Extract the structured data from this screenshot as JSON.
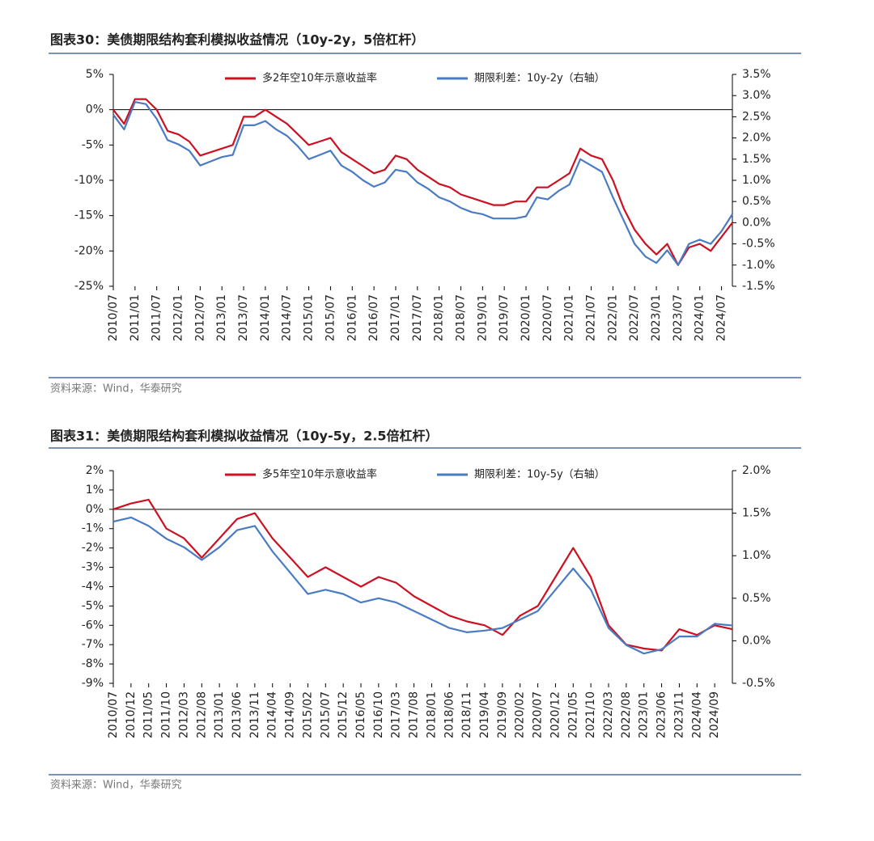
{
  "chart_data": [
    {
      "type": "line",
      "title": "图表30：美债期限结构套利模拟收益情况（10y-2y，5倍杠杆）",
      "source": "资料来源：Wind，华泰研究",
      "categories": [
        "2010/07",
        null,
        "2011/01",
        null,
        "2011/07",
        null,
        "2012/01",
        null,
        "2012/07",
        null,
        "2013/01",
        null,
        "2013/07",
        null,
        "2014/01",
        null,
        "2014/07",
        null,
        "2015/01",
        null,
        "2015/07",
        null,
        "2016/01",
        null,
        "2016/07",
        null,
        "2017/01",
        null,
        "2017/07",
        null,
        "2018/01",
        null,
        "2018/07",
        null,
        "2019/01",
        null,
        "2019/07",
        null,
        "2020/01",
        null,
        "2020/07",
        null,
        "2021/01",
        null,
        "2021/07",
        null,
        "2022/01",
        null,
        "2022/07",
        null,
        "2023/01",
        null,
        "2023/07",
        null,
        "2024/01",
        null,
        "2024/07",
        null
      ],
      "series": [
        {
          "name": "多2年空10年示意收益率",
          "color": "#cc1122",
          "values": [
            0,
            -2,
            1.5,
            1.5,
            0,
            -3,
            -3.5,
            -4.5,
            -6.5,
            -6,
            -5.5,
            -5,
            -1,
            -1,
            0,
            -1,
            -2,
            -3.5,
            -5,
            -4.5,
            -4,
            -6,
            -7,
            -8,
            -9,
            -8.5,
            -6.5,
            -7,
            -8.5,
            -9.5,
            -10.5,
            -11,
            -12,
            -12.5,
            -13,
            -13.5,
            -13.5,
            -13,
            -13,
            -11,
            -11,
            -10,
            -9,
            -5.5,
            -6.5,
            -7,
            -10,
            -14,
            -17,
            -19,
            -20.5,
            -19,
            -22,
            -19.5,
            -19,
            -20,
            -18,
            -16
          ]
        },
        {
          "name": "期限利差：10y-2y（右轴）",
          "color": "#4a7cc4",
          "axis": "y2",
          "values": [
            2.55,
            2.2,
            2.85,
            2.8,
            2.45,
            1.95,
            1.85,
            1.7,
            1.35,
            1.45,
            1.55,
            1.6,
            2.3,
            2.3,
            2.4,
            2.2,
            2.05,
            1.8,
            1.5,
            1.6,
            1.7,
            1.35,
            1.2,
            1.0,
            0.85,
            0.95,
            1.25,
            1.2,
            0.95,
            0.8,
            0.6,
            0.5,
            0.35,
            0.25,
            0.2,
            0.1,
            0.1,
            0.1,
            0.15,
            0.6,
            0.55,
            0.75,
            0.9,
            1.5,
            1.35,
            1.2,
            0.6,
            0.05,
            -0.5,
            -0.8,
            -0.95,
            -0.65,
            -1.0,
            -0.5,
            -0.4,
            -0.5,
            -0.2,
            0.2
          ]
        }
      ],
      "ylim": [
        -25,
        5
      ],
      "yticks": [
        {
          "value": -25,
          "label": "-25%"
        },
        {
          "value": -20,
          "label": "-20%"
        },
        {
          "value": -15,
          "label": "-15%"
        },
        {
          "value": -10,
          "label": "-10%"
        },
        {
          "value": -5,
          "label": "-5%"
        },
        {
          "value": 0,
          "label": "0%"
        },
        {
          "value": 5,
          "label": "5%"
        }
      ],
      "y2lim": [
        -1.5,
        3.5
      ],
      "y2ticks": [
        {
          "value": -1.5,
          "label": "-1.5%"
        },
        {
          "value": -1.0,
          "label": "-1.0%"
        },
        {
          "value": -0.5,
          "label": "-0.5%"
        },
        {
          "value": 0,
          "label": "0.0%"
        },
        {
          "value": 0.5,
          "label": "0.5%"
        },
        {
          "value": 1.0,
          "label": "1.0%"
        },
        {
          "value": 1.5,
          "label": "1.5%"
        },
        {
          "value": 2.0,
          "label": "2.0%"
        },
        {
          "value": 2.5,
          "label": "2.5%"
        },
        {
          "value": 3.0,
          "label": "3.0%"
        },
        {
          "value": 3.5,
          "label": "3.5%"
        }
      ]
    },
    {
      "type": "line",
      "title": "图表31：美债期限结构套利模拟收益情况（10y-5y，2.5倍杠杆）",
      "source": "资料来源：Wind，华泰研究",
      "categories": [
        "2010/07",
        "2010/12",
        "2011/05",
        "2011/10",
        "2012/03",
        "2012/08",
        "2013/01",
        "2013/06",
        "2013/11",
        "2014/04",
        "2014/09",
        "2015/02",
        "2015/07",
        "2015/12",
        "2016/05",
        "2016/10",
        "2017/03",
        "2017/08",
        "2018/01",
        "2018/06",
        "2018/11",
        "2019/04",
        "2019/09",
        "2020/02",
        "2020/07",
        "2020/12",
        "2021/05",
        "2021/10",
        "2022/03",
        "2022/08",
        "2023/01",
        "2023/06",
        "2023/11",
        "2024/04",
        "2024/09",
        null
      ],
      "series": [
        {
          "name": "多5年空10年示意收益率",
          "color": "#cc1122",
          "values": [
            0,
            0.3,
            0.5,
            -1,
            -1.5,
            -2.5,
            -1.5,
            -0.5,
            -0.2,
            -1.5,
            -2.5,
            -3.5,
            -3,
            -3.5,
            -4,
            -3.5,
            -3.8,
            -4.5,
            -5,
            -5.5,
            -5.8,
            -6,
            -6.5,
            -5.5,
            -5,
            -3.5,
            -2,
            -3.5,
            -6,
            -7,
            -7.2,
            -7.3,
            -6.2,
            -6.5,
            -6,
            -6.2
          ]
        },
        {
          "name": "期限利差：10y-5y（右轴）",
          "color": "#4a7cc4",
          "axis": "y2",
          "values": [
            1.4,
            1.45,
            1.35,
            1.2,
            1.1,
            0.95,
            1.1,
            1.3,
            1.35,
            1.05,
            0.8,
            0.55,
            0.6,
            0.55,
            0.45,
            0.5,
            0.45,
            0.35,
            0.25,
            0.15,
            0.1,
            0.12,
            0.15,
            0.25,
            0.35,
            0.6,
            0.85,
            0.6,
            0.15,
            -0.05,
            -0.15,
            -0.1,
            0.05,
            0.05,
            0.2,
            0.18
          ]
        }
      ],
      "ylim": [
        -9,
        2
      ],
      "yticks": [
        {
          "value": -9,
          "label": "-9%"
        },
        {
          "value": -8,
          "label": "-8%"
        },
        {
          "value": -7,
          "label": "-7%"
        },
        {
          "value": -6,
          "label": "-6%"
        },
        {
          "value": -5,
          "label": "-5%"
        },
        {
          "value": -4,
          "label": "-4%"
        },
        {
          "value": -3,
          "label": "-3%"
        },
        {
          "value": -2,
          "label": "-2%"
        },
        {
          "value": -1,
          "label": "-1%"
        },
        {
          "value": 0,
          "label": "0%"
        },
        {
          "value": 1,
          "label": "1%"
        },
        {
          "value": 2,
          "label": "2%"
        }
      ],
      "y2lim": [
        -0.5,
        2.0
      ],
      "y2ticks": [
        {
          "value": -0.5,
          "label": "-0.5%"
        },
        {
          "value": 0,
          "label": "0.0%"
        },
        {
          "value": 0.5,
          "label": "0.5%"
        },
        {
          "value": 1.0,
          "label": "1.0%"
        },
        {
          "value": 1.5,
          "label": "1.5%"
        },
        {
          "value": 2.0,
          "label": "2.0%"
        }
      ]
    }
  ]
}
